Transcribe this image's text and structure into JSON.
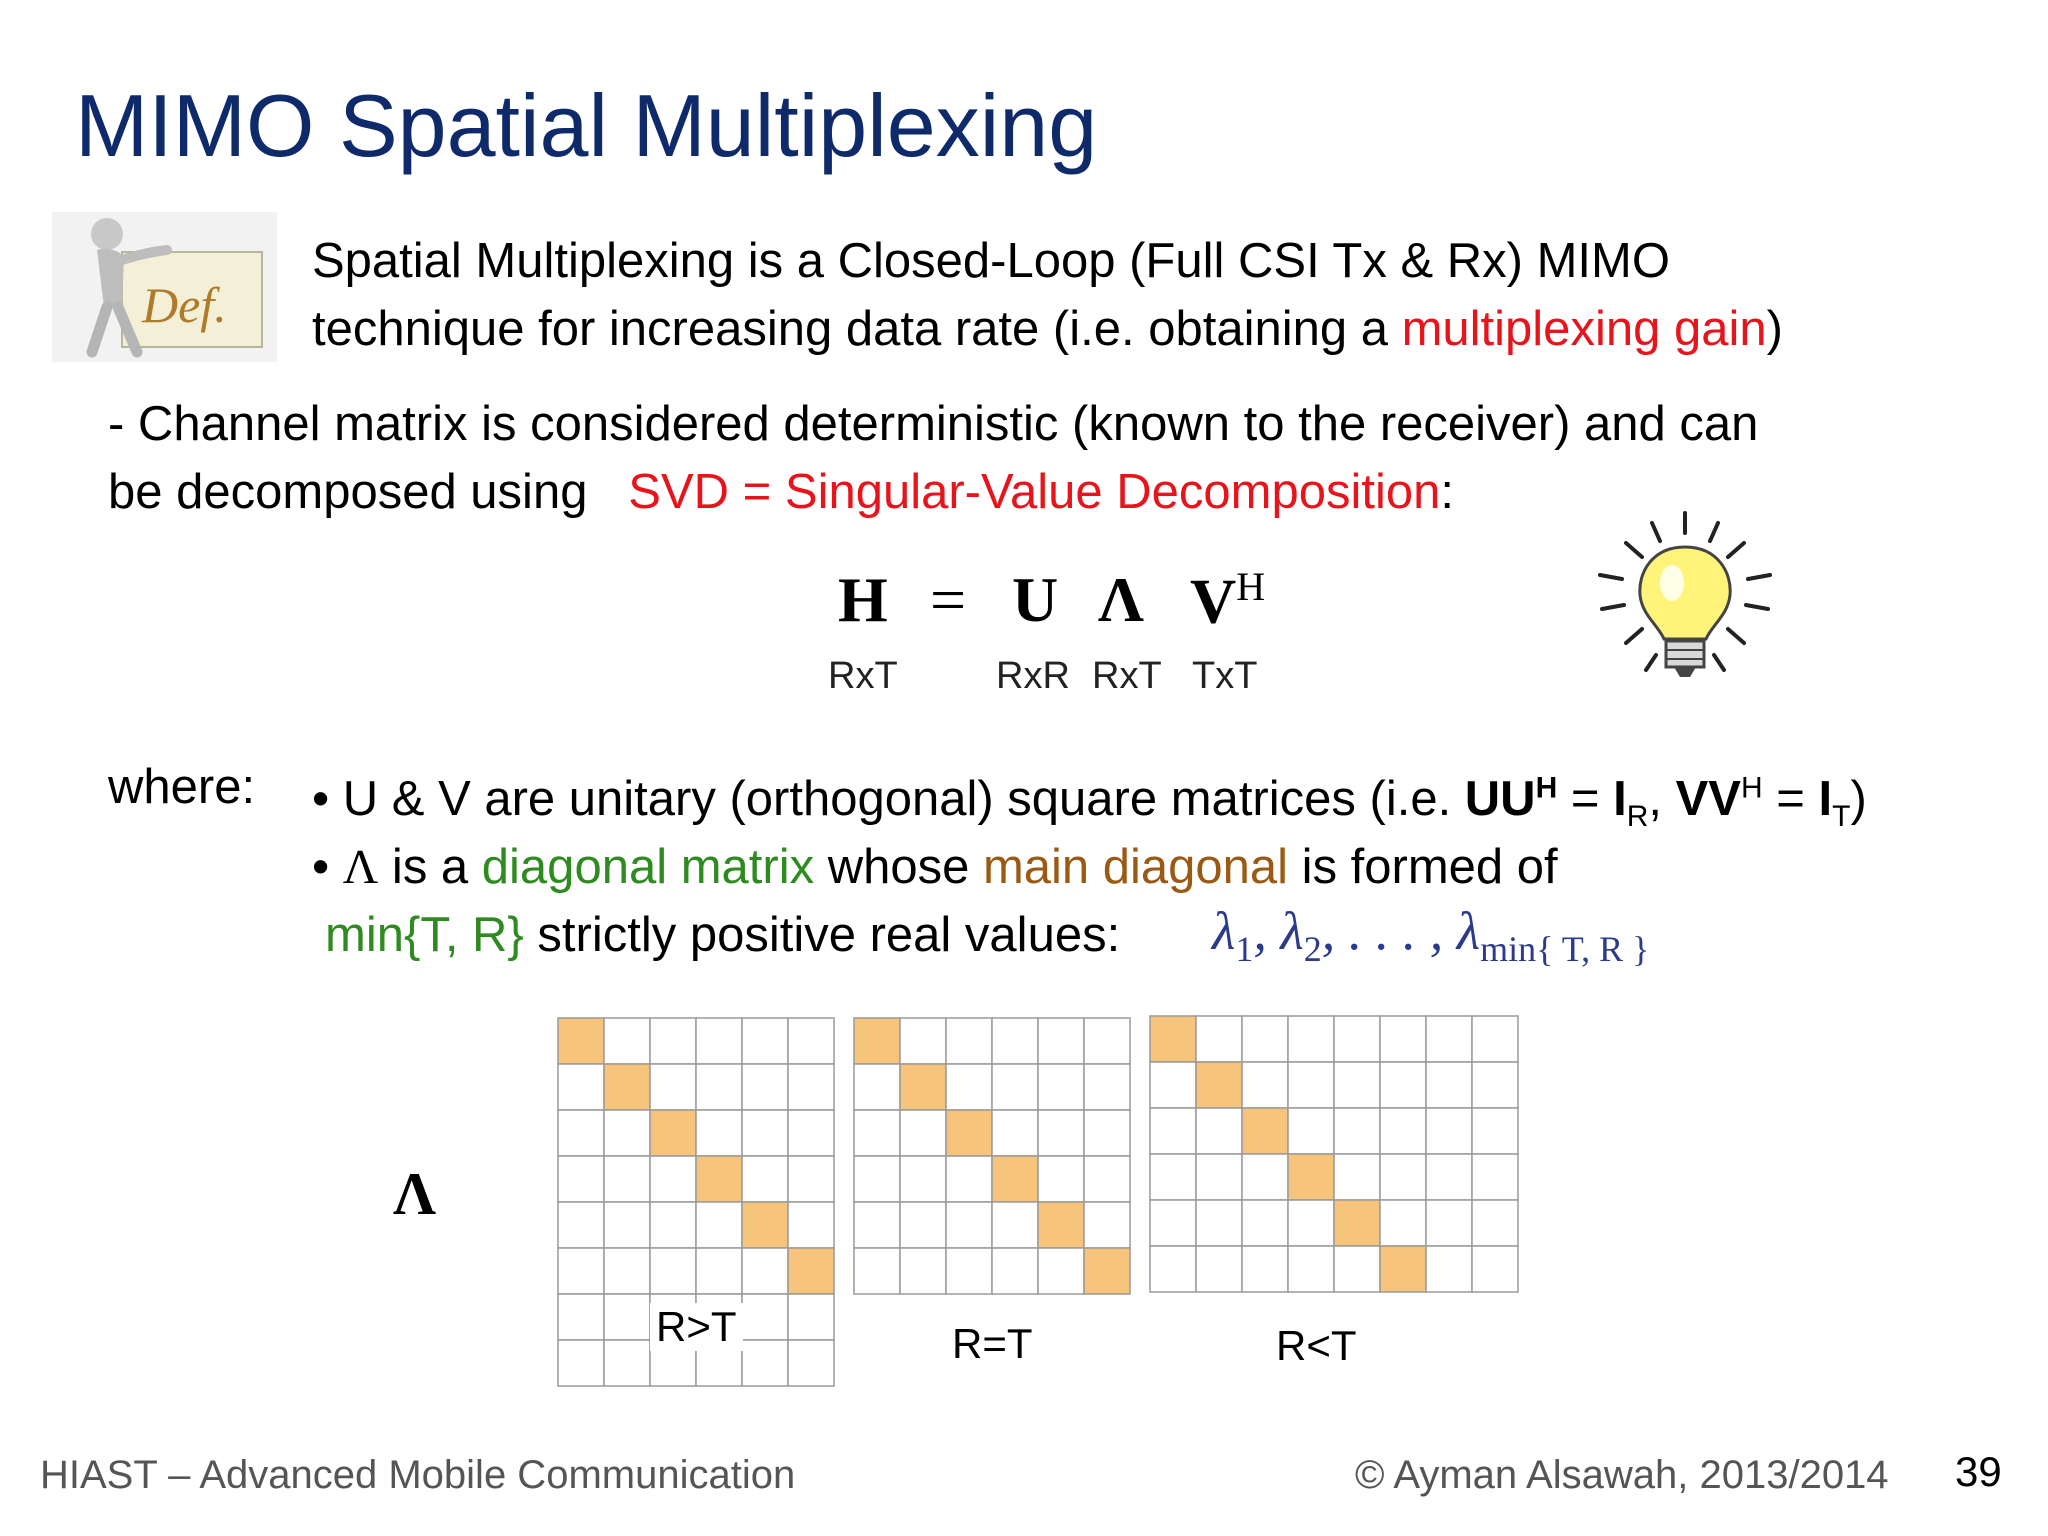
{
  "slide": {
    "title": "MIMO Spatial Multiplexing",
    "def_icon_text": "Def.",
    "definition": {
      "line1": "Spatial Multiplexing is a Closed-Loop (Full CSI Tx & Rx) MIMO",
      "line2_pre": "technique for increasing data rate (i.e. obtaining a ",
      "line2_highlight": "multiplexing gain",
      "line2_post": ")"
    },
    "channel": {
      "line1": "- Channel matrix is considered deterministic (known to the receiver) and can",
      "line2_pre": "be decomposed using   ",
      "line2_highlight": "SVD = Singular-Value Decomposition",
      "line2_post": ":"
    },
    "equation": {
      "H": "H",
      "eq": "=",
      "U": "U",
      "Lambda": "Λ",
      "V": "V",
      "V_sup": "H",
      "dims": {
        "H": "RxT",
        "U": "RxR",
        "Lambda": "RxT",
        "V": "TxT"
      }
    },
    "where": {
      "label": "where:",
      "bullet1": {
        "pre": "• U & V are unitary (orthogonal) square matrices (i.e. ",
        "UU": "UU",
        "UU_sup": "H",
        "eq1": " = ",
        "I1": "I",
        "I1_sub": "R",
        "comma": ", ",
        "VV": "VV",
        "VV_sup": "H",
        "eq2": " = ",
        "I2": "I",
        "I2_sub": "T",
        "post": ")"
      },
      "bullet2": {
        "bullet": "• ",
        "lambda": "Λ",
        "pre": " is a ",
        "diag": "diagonal matrix",
        "mid": " whose ",
        "main": "main diagonal",
        "post": " is formed of"
      },
      "bullet3": {
        "min": "min{T, R}",
        "post": " strictly positive real values:",
        "values_l1": "λ",
        "values_s1": "1",
        "values_sep1": ", ",
        "values_l2": "λ",
        "values_s2": "2",
        "values_sep2": ", . . . , ",
        "values_l3": "λ",
        "values_s3": "min{ T, R }"
      }
    },
    "matrices": {
      "lambda_label": "Λ",
      "labels": [
        "R>T",
        "R=T",
        "R<T"
      ],
      "cell_color": "#f7c47c",
      "grid_color": "#9a9a9a"
    },
    "footer": {
      "left": "HIAST  – Advanced Mobile Communication",
      "right": "© Ayman Alsawah, 2013/2014",
      "page": "39"
    }
  }
}
